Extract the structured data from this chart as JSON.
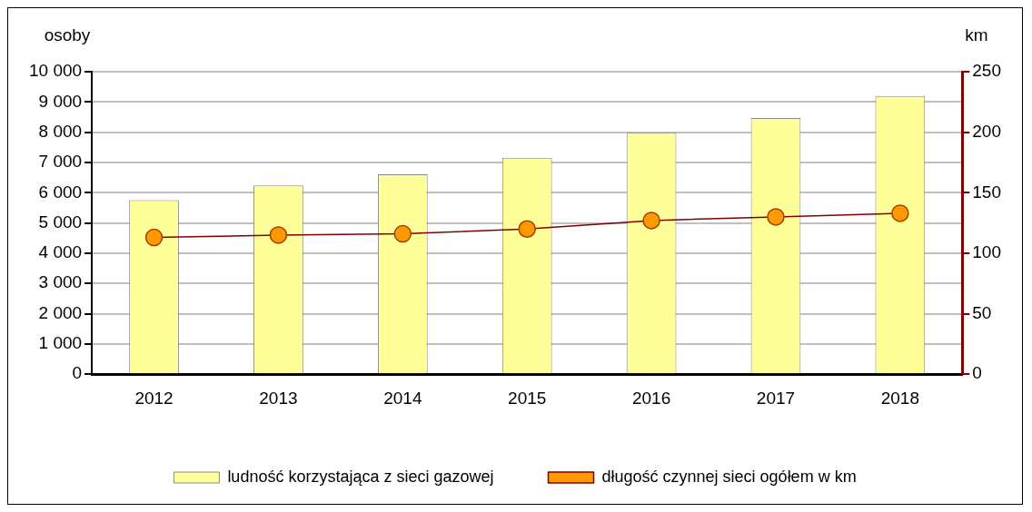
{
  "chart_data": {
    "type": "bar",
    "categories": [
      "2012",
      "2013",
      "2014",
      "2015",
      "2016",
      "2017",
      "2018"
    ],
    "series": [
      {
        "name": "ludność korzystająca z sieci gazowej",
        "color": "#ffff99",
        "values": [
          5750,
          6240,
          6610,
          7160,
          7980,
          8470,
          9200
        ]
      },
      {
        "name": "długość czynnej sieci ogółem w km",
        "type": "line",
        "axis": "y2",
        "color": "#800000",
        "marker": "circle",
        "values": [
          113,
          115,
          116,
          120,
          127,
          130,
          133
        ]
      }
    ],
    "ylabel": "osoby",
    "y2label": "km",
    "ylim": [
      0,
      10000
    ],
    "yticks": [
      0,
      {
        "value": 1000,
        "label": "1 000"
      },
      {
        "value": 2000,
        "label": "2 000"
      },
      {
        "value": 3000,
        "label": "3 000"
      },
      {
        "value": 4000,
        "label": "4 000"
      },
      {
        "value": 5000,
        "label": "5 000"
      },
      {
        "value": 6000,
        "label": "6 000"
      },
      {
        "value": 7000,
        "label": "7 000"
      },
      {
        "value": 8000,
        "label": "8 000"
      },
      {
        "value": 9000,
        "label": "9 000"
      },
      {
        "value": 10000,
        "label": "10 000"
      }
    ],
    "y2lim": [
      0,
      250
    ],
    "y2ticks": [
      0,
      50,
      100,
      150,
      200,
      250
    ],
    "grid": "y",
    "legend": "bottom"
  }
}
